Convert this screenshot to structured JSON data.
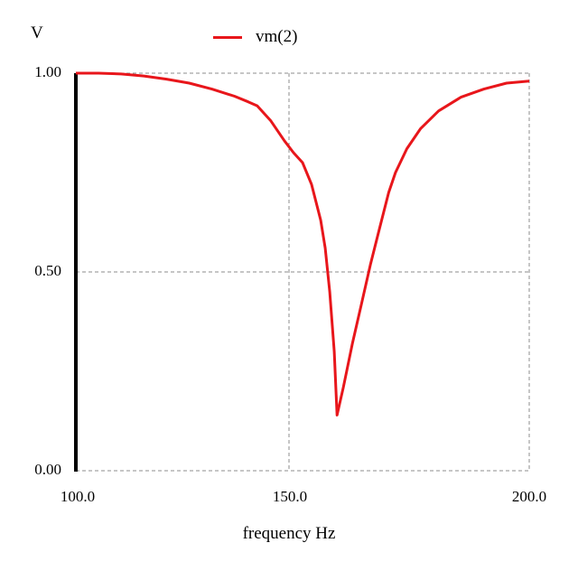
{
  "chart_data": {
    "type": "line",
    "title": "",
    "xlabel": "frequency Hz",
    "ylabel": "V",
    "xlim": [
      100.0,
      200.0
    ],
    "ylim": [
      0.0,
      1.0
    ],
    "grid": true,
    "legend_position": "top-center",
    "x_ticks": [
      "100.0",
      "150.0",
      "200.0"
    ],
    "y_ticks": [
      "0.00",
      "0.50",
      "1.00"
    ],
    "series": [
      {
        "name": "vm(2)",
        "color": "#e8161b",
        "x": [
          100,
          105,
          110,
          115,
          120,
          125,
          130,
          135,
          138,
          140,
          143,
          146,
          148,
          150,
          152,
          154,
          155,
          156,
          157,
          157.6,
          159,
          161,
          163,
          165,
          167,
          169,
          170.5,
          173,
          176,
          180,
          185,
          190,
          195,
          200
        ],
        "y": [
          1.0,
          1.0,
          0.998,
          0.993,
          0.985,
          0.975,
          0.96,
          0.942,
          0.928,
          0.918,
          0.88,
          0.83,
          0.8,
          0.775,
          0.72,
          0.63,
          0.56,
          0.45,
          0.3,
          0.14,
          0.21,
          0.32,
          0.42,
          0.52,
          0.61,
          0.7,
          0.75,
          0.81,
          0.86,
          0.905,
          0.94,
          0.96,
          0.975,
          0.98
        ]
      }
    ]
  },
  "labels": {
    "y_unit": "V",
    "x_axis": "frequency Hz",
    "legend_name": "vm(2)",
    "y_tick_top": "1.00",
    "y_tick_mid": "0.50",
    "y_tick_bottom": "0.00",
    "x_tick_left": "100.0",
    "x_tick_mid": "150.0",
    "x_tick_right": "200.0"
  },
  "colors": {
    "series": "#e8161b",
    "grid": "#8c8c8c",
    "axis": "#000000"
  }
}
